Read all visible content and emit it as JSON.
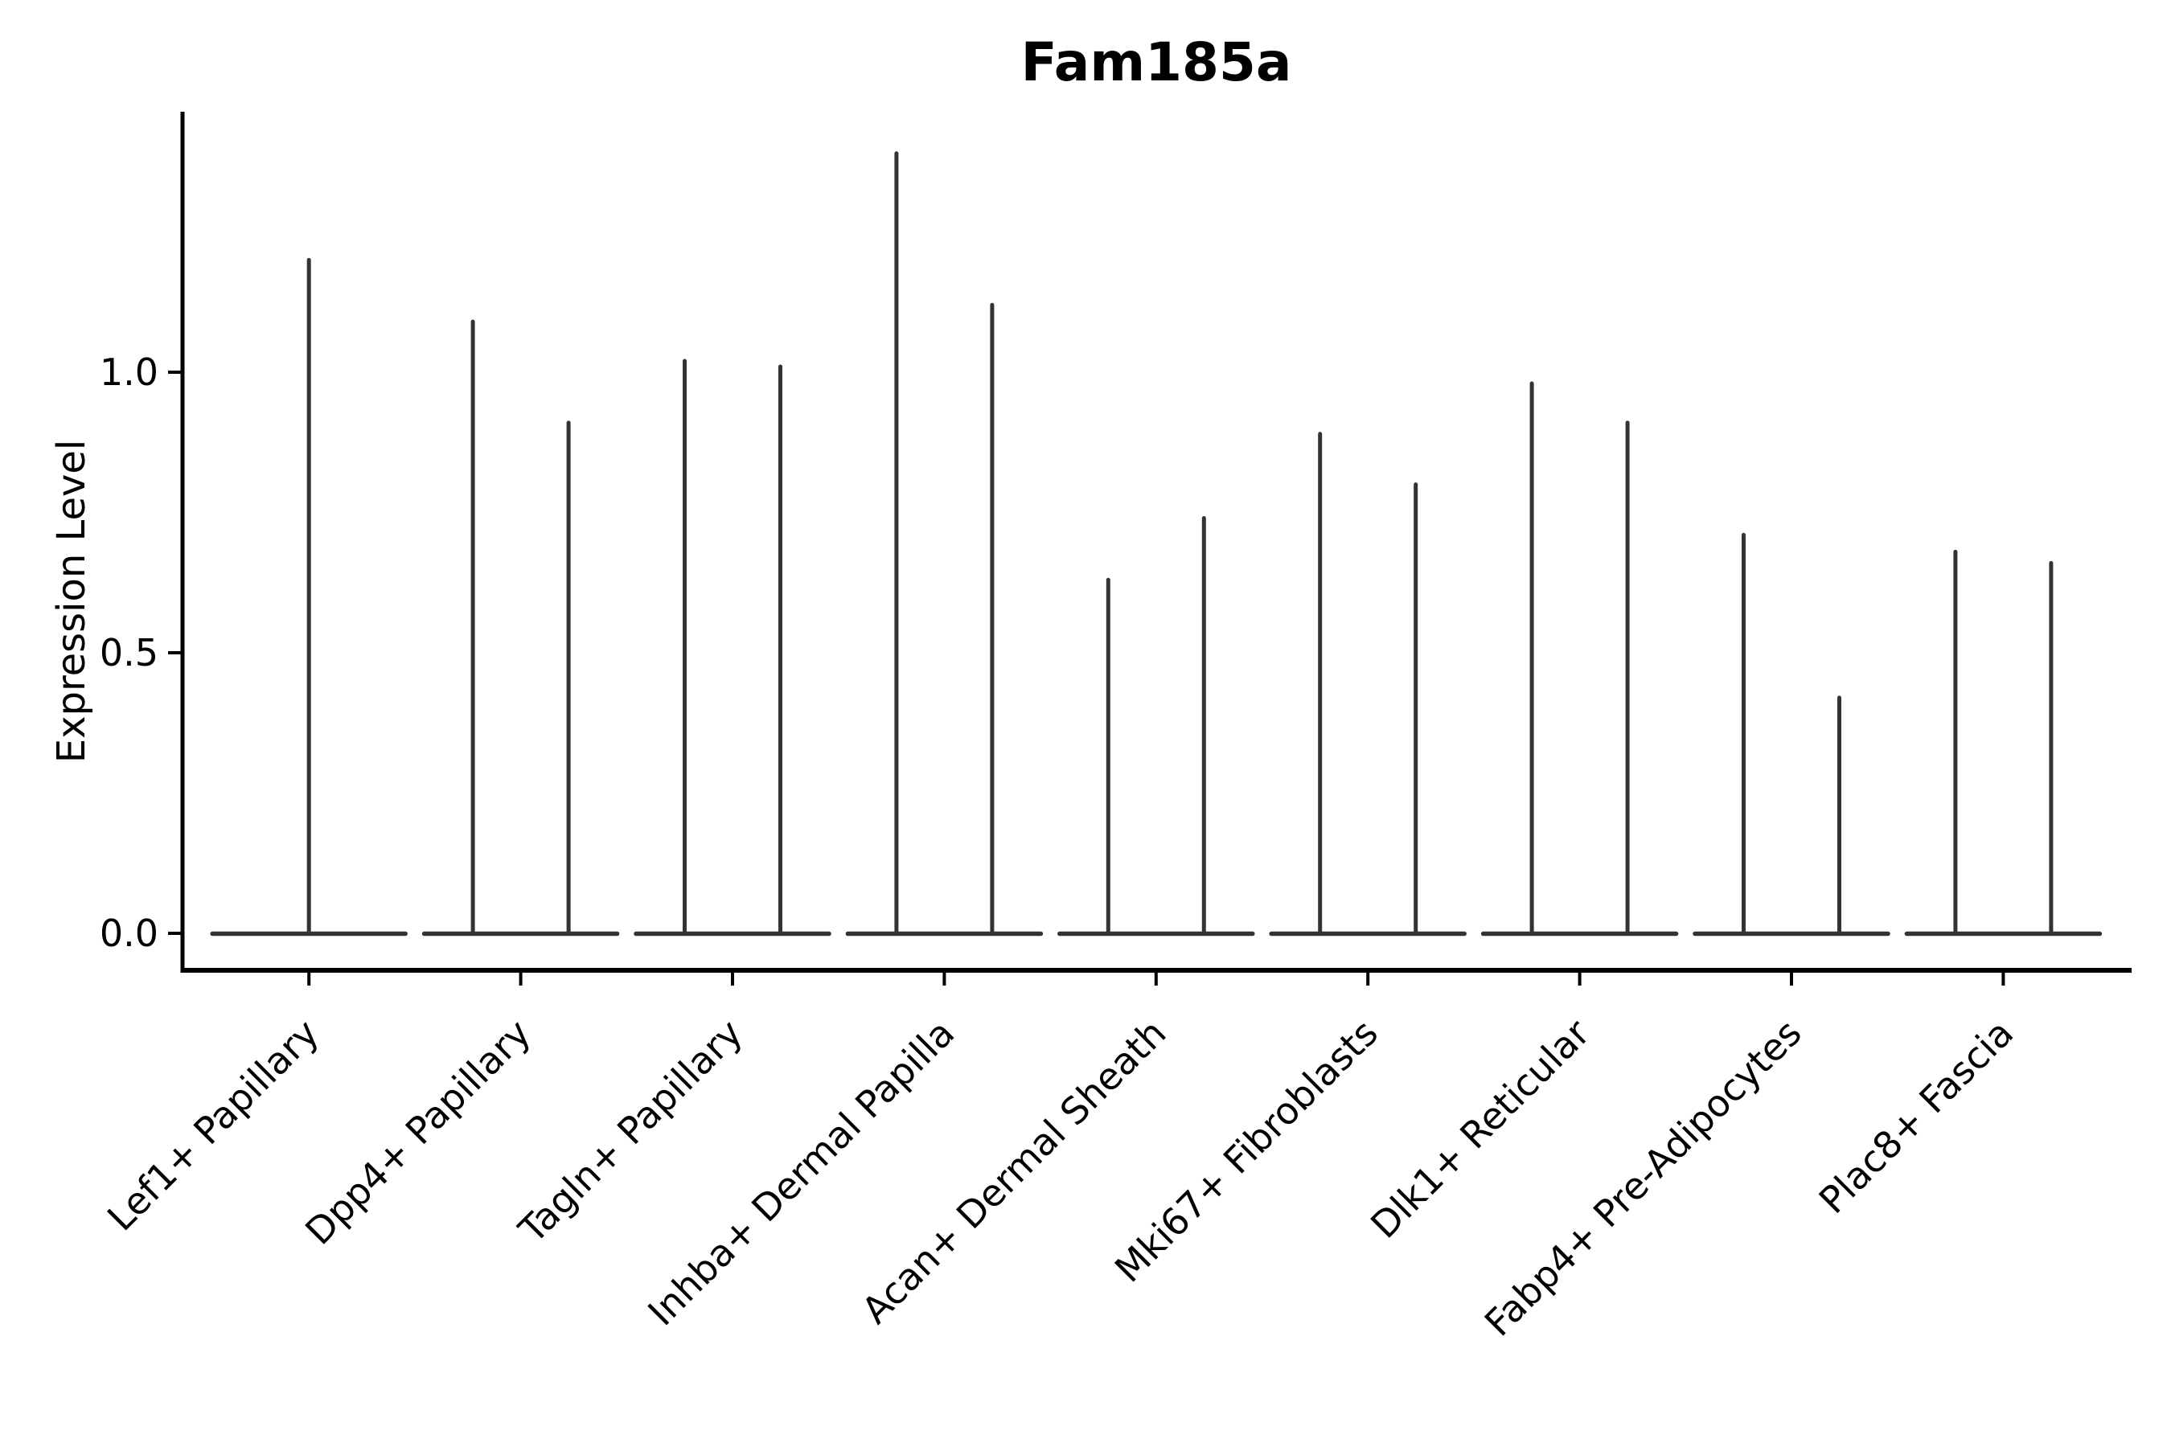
{
  "chart_data": {
    "type": "violin",
    "title": "Fam185a",
    "xlabel": "",
    "ylabel": "Expression Level",
    "ylim": [
      -0.07,
      1.46
    ],
    "grid": false,
    "legend": "none",
    "spines": [
      "left",
      "bottom"
    ],
    "x_label_rotation": 45,
    "y_ticks": [
      {
        "value": 0.0,
        "label": "0.0"
      },
      {
        "value": 0.5,
        "label": "0.5"
      },
      {
        "value": 1.0,
        "label": "1.0"
      }
    ],
    "categories": [
      "Lef1+ Papillary",
      "Dpp4+ Papillary",
      "Tagln+ Papillary",
      "Inhba+ Dermal Papilla",
      "Acan+ Dermal Sheath",
      "Mki67+ Fibroblasts",
      "Dlk1+ Reticular",
      "Fabp4+ Pre-Adipocytes",
      "Plac8+ Fascia"
    ],
    "violins": [
      {
        "category": "Lef1+ Papillary",
        "baseline_value": 0.0,
        "spike_max_values": [
          1.2
        ]
      },
      {
        "category": "Dpp4+ Papillary",
        "baseline_value": 0.0,
        "spike_max_values": [
          1.09,
          0.91
        ]
      },
      {
        "category": "Tagln+ Papillary",
        "baseline_value": 0.0,
        "spike_max_values": [
          1.02,
          1.01
        ]
      },
      {
        "category": "Inhba+ Dermal Papilla",
        "baseline_value": 0.0,
        "spike_max_values": [
          1.39,
          1.12
        ]
      },
      {
        "category": "Acan+ Dermal Sheath",
        "baseline_value": 0.0,
        "spike_max_values": [
          0.63,
          0.74
        ]
      },
      {
        "category": "Mki67+ Fibroblasts",
        "baseline_value": 0.0,
        "spike_max_values": [
          0.89,
          0.8
        ]
      },
      {
        "category": "Dlk1+ Reticular",
        "baseline_value": 0.0,
        "spike_max_values": [
          0.98,
          0.91
        ]
      },
      {
        "category": "Fabp4+ Pre-Adipocytes",
        "baseline_value": 0.0,
        "spike_max_values": [
          0.71,
          0.42
        ]
      },
      {
        "category": "Plac8+ Fascia",
        "baseline_value": 0.0,
        "spike_max_values": [
          0.68,
          0.66
        ]
      }
    ],
    "colors": {
      "violin_line": "#333333",
      "spine": "#000000",
      "text": "#000000",
      "background": "#ffffff"
    }
  }
}
